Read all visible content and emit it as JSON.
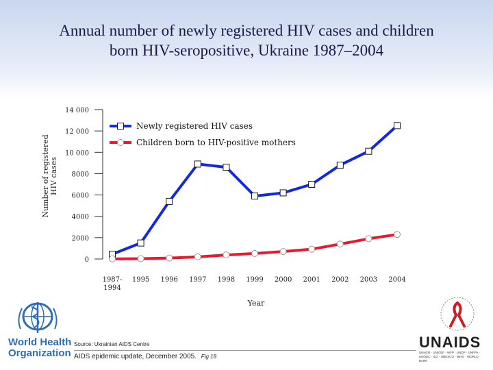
{
  "header": {
    "title_line1": "Annual number of newly registered HIV cases and children",
    "title_line2": "born HIV-seropositive, Ukraine 1987–2004"
  },
  "chart_data": {
    "type": "line",
    "title": "Annual number of newly registered HIV cases and children born HIV-seropositive, Ukraine 1987–2004",
    "xlabel": "Year",
    "ylabel": "Number of registered HIV cases",
    "ylim": [
      0,
      14000
    ],
    "yticks": [
      0,
      2000,
      4000,
      6000,
      8000,
      10000,
      12000,
      14000
    ],
    "ytick_labels": [
      "0",
      "2000",
      "4000",
      "6000",
      "8000",
      "10 000",
      "12 000",
      "14 000"
    ],
    "categories": [
      "1987–1994",
      "1995",
      "1996",
      "1997",
      "1998",
      "1999",
      "2000",
      "2001",
      "2002",
      "2003",
      "2004"
    ],
    "category_labels": [
      [
        "1987-",
        "1994"
      ],
      [
        "1995"
      ],
      [
        "1996"
      ],
      [
        "1997"
      ],
      [
        "1998"
      ],
      [
        "1999"
      ],
      [
        "2000"
      ],
      [
        "2001"
      ],
      [
        "2002"
      ],
      [
        "2003"
      ],
      [
        "2004"
      ]
    ],
    "series": [
      {
        "name": "Newly registered HIV cases",
        "color": "#1428e0",
        "marker": "square",
        "values": [
          450,
          1500,
          5400,
          8900,
          8600,
          5900,
          6200,
          7000,
          8800,
          10100,
          12500
        ]
      },
      {
        "name": "Children born to HIV-positive mothers",
        "color": "#e8192c",
        "marker": "circle",
        "values": [
          10,
          30,
          90,
          200,
          380,
          520,
          700,
          920,
          1400,
          1900,
          2300
        ]
      }
    ],
    "legend": "top-right"
  },
  "footer": {
    "source": "Source: Ukrainian AIDS Centre",
    "citation": "AIDS epidemic update, December 2005.",
    "figure": "Fig 18"
  },
  "logos": {
    "who": [
      "World Health",
      "Organization"
    ],
    "unaids": "UNAIDS",
    "unaids_sub": "UNHCR · UNICEF · WFP · UNDP · UNFPA · UNODC · ILO · UNESCO · WHO · WORLD BANK"
  }
}
